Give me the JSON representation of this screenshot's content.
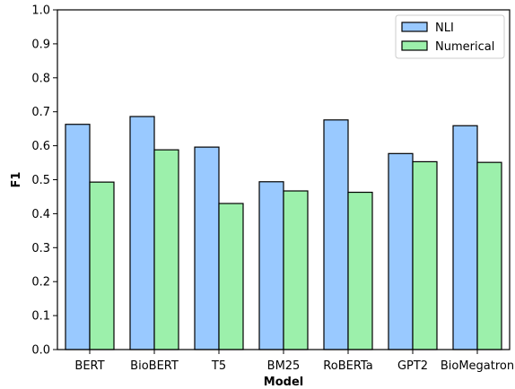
{
  "chart_data": {
    "type": "bar",
    "title": "",
    "xlabel": "Model",
    "ylabel": "F1",
    "ylim": [
      0,
      1.0
    ],
    "yticks": [
      "0.0",
      "0.1",
      "0.2",
      "0.3",
      "0.4",
      "0.5",
      "0.6",
      "0.7",
      "0.8",
      "0.9",
      "1.0"
    ],
    "grid": false,
    "legend_position": "top-right",
    "categories": [
      "BERT",
      "BioBERT",
      "T5",
      "BM25",
      "RoBERTa",
      "GPT2",
      "BioMegatron"
    ],
    "series": [
      {
        "name": "NLI",
        "color": "#99c9ff",
        "values": [
          0.663,
          0.686,
          0.596,
          0.494,
          0.676,
          0.577,
          0.659
        ]
      },
      {
        "name": "Numerical",
        "color": "#9cf0ab",
        "values": [
          0.493,
          0.588,
          0.43,
          0.467,
          0.463,
          0.553,
          0.551
        ]
      }
    ]
  }
}
